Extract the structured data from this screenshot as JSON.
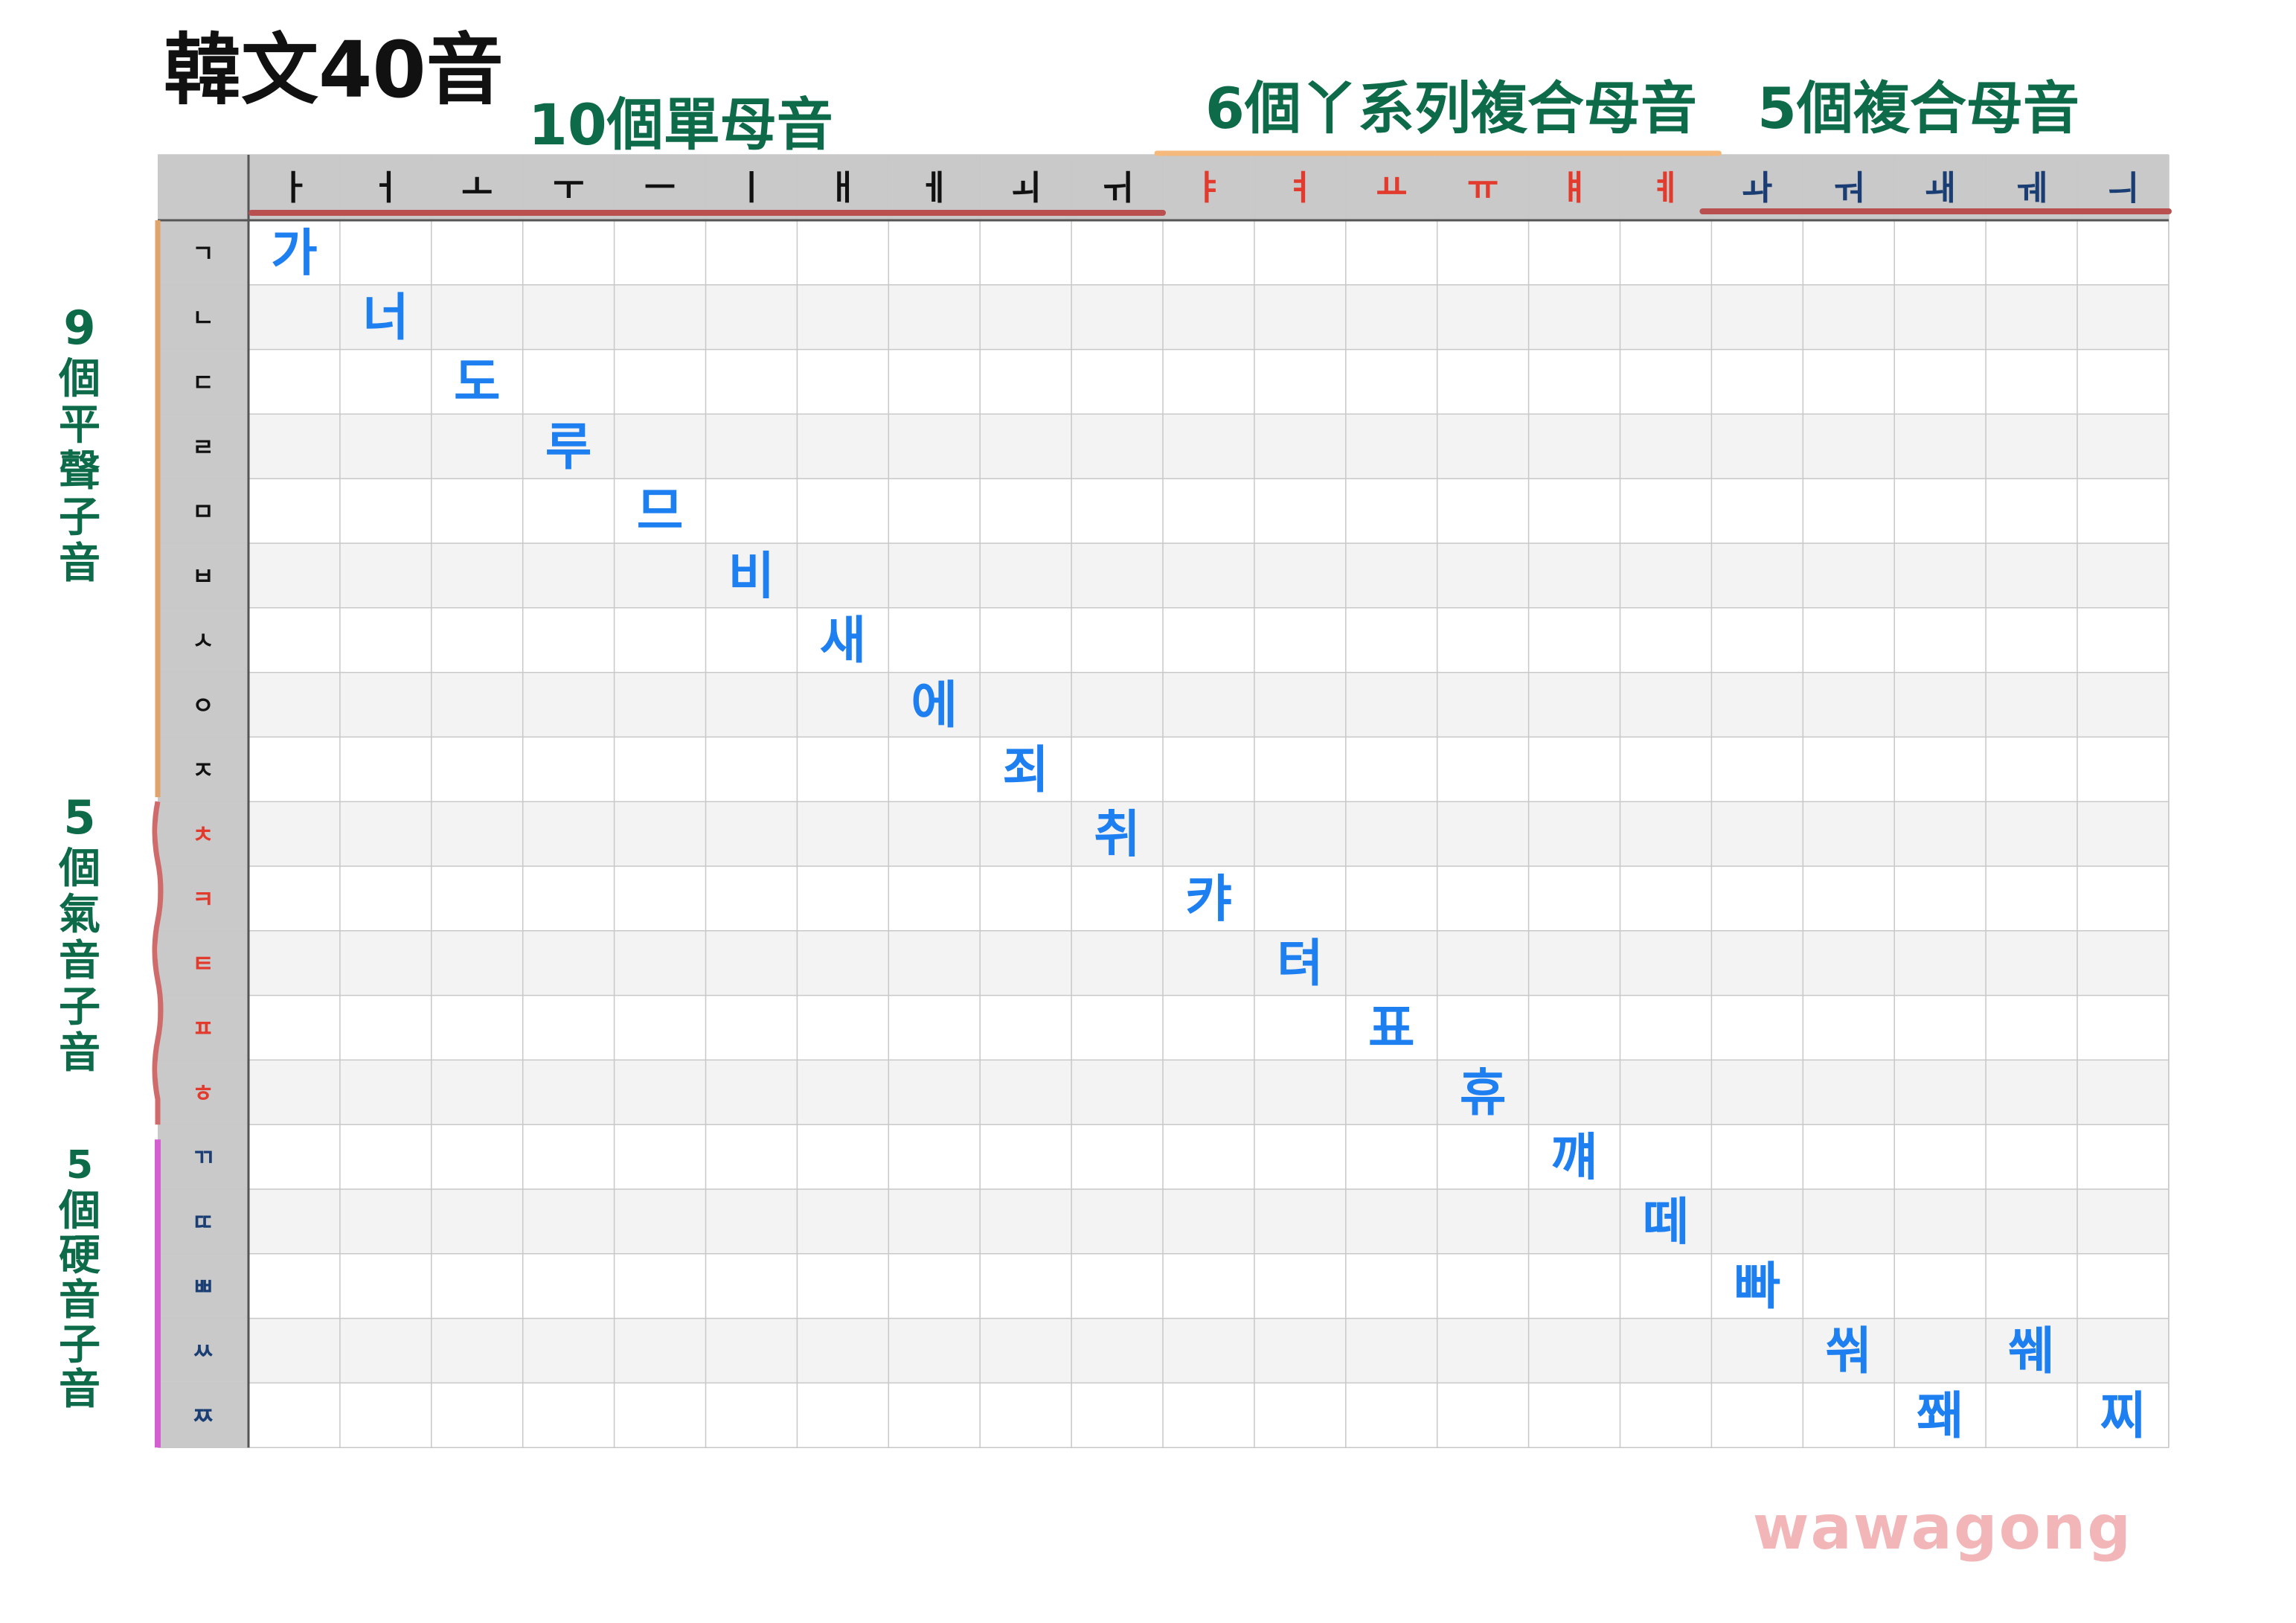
{
  "title": "韓文40音",
  "groups": {
    "simple": "10個單母音",
    "ya_series": "6個丫系列複合母音",
    "compound": "5個複合母音"
  },
  "side_groups": {
    "plain": [
      "9",
      "個",
      "平",
      "聲",
      "子",
      "音"
    ],
    "aspirated": [
      "5",
      "個",
      "氣",
      "音",
      "子",
      "音"
    ],
    "tense": [
      "5",
      "個",
      "硬",
      "音",
      "子",
      "音"
    ]
  },
  "vowels": [
    "ㅏ",
    "ㅓ",
    "ㅗ",
    "ㅜ",
    "ㅡ",
    "ㅣ",
    "ㅐ",
    "ㅔ",
    "ㅚ",
    "ㅟ",
    "ㅑ",
    "ㅕ",
    "ㅛ",
    "ㅠ",
    "ㅒ",
    "ㅖ",
    "ㅘ",
    "ㅝ",
    "ㅙ",
    "ㅞ",
    "ㅢ"
  ],
  "consonants": [
    "ㄱ",
    "ㄴ",
    "ㄷ",
    "ㄹ",
    "ㅁ",
    "ㅂ",
    "ㅅ",
    "ㅇ",
    "ㅈ",
    "ㅊ",
    "ㅋ",
    "ㅌ",
    "ㅍ",
    "ㅎ",
    "ㄲ",
    "ㄸ",
    "ㅃ",
    "ㅆ",
    "ㅉ"
  ],
  "examples": [
    {
      "row": 0,
      "col": 0,
      "text": "가"
    },
    {
      "row": 1,
      "col": 1,
      "text": "너"
    },
    {
      "row": 2,
      "col": 2,
      "text": "도"
    },
    {
      "row": 3,
      "col": 3,
      "text": "루"
    },
    {
      "row": 4,
      "col": 4,
      "text": "므"
    },
    {
      "row": 5,
      "col": 5,
      "text": "비"
    },
    {
      "row": 6,
      "col": 6,
      "text": "새"
    },
    {
      "row": 7,
      "col": 7,
      "text": "에"
    },
    {
      "row": 8,
      "col": 8,
      "text": "죄"
    },
    {
      "row": 9,
      "col": 9,
      "text": "취"
    },
    {
      "row": 10,
      "col": 10,
      "text": "캬"
    },
    {
      "row": 11,
      "col": 11,
      "text": "텨"
    },
    {
      "row": 12,
      "col": 12,
      "text": "표"
    },
    {
      "row": 13,
      "col": 13,
      "text": "휴"
    },
    {
      "row": 14,
      "col": 14,
      "text": "꺠"
    },
    {
      "row": 15,
      "col": 15,
      "text": "떼"
    },
    {
      "row": 16,
      "col": 16,
      "text": "빠"
    },
    {
      "row": 17,
      "col": 17,
      "text": "쒀"
    },
    {
      "row": 17,
      "col": 19,
      "text": "쒜"
    },
    {
      "row": 18,
      "col": 18,
      "text": "쫴"
    },
    {
      "row": 18,
      "col": 20,
      "text": "찌"
    }
  ],
  "colors": {
    "green": "#0e6b49",
    "blue": "#1e7ff0",
    "red": "#e23b2e",
    "navy": "#1a3e73",
    "black": "#111111",
    "grid": "#c8c8c8",
    "header_bg": "#c9c9c9",
    "row_alt": "#f3f3f3",
    "bar_orange": "#e0a36b",
    "bar_red": "#cf6b6b",
    "bar_magenta": "#d35fd0",
    "underline_red": "#b94f4f",
    "underline_orange": "#f5b97c"
  },
  "watermark": "wawagong"
}
